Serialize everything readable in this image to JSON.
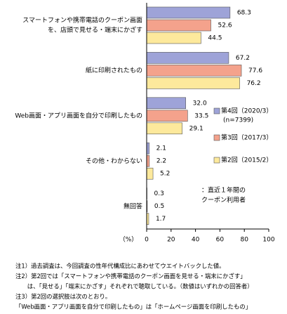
{
  "chart_data": {
    "type": "hbar",
    "categories": [
      [
        "スマートフォンや携帯電話のクーポン画面",
        "を、店頭で見せる・端末にかざす"
      ],
      [
        "紙に印刷されたもの"
      ],
      [
        "Web画面・アプリ画面を自分で印刷したもの"
      ],
      [
        "その他・わからない"
      ],
      [
        "無回答"
      ]
    ],
    "series": [
      {
        "name": "第4回（2020/3）",
        "note": "(n=7399)",
        "color": "#9ea3d8",
        "values": [
          68.3,
          67.2,
          32.0,
          2.1,
          0.3
        ],
        "value_labels": [
          "68.3",
          "67.2",
          "32.0",
          "2.1",
          "0.3"
        ]
      },
      {
        "name": "第3回（2017/3）",
        "color": "#f4a28c",
        "values": [
          52.6,
          77.6,
          33.5,
          2.2,
          0.5
        ],
        "value_labels": [
          "52.6",
          "77.6",
          "33.5",
          "2.2",
          "0.5"
        ]
      },
      {
        "name": "第2回（2015/2）",
        "color": "#fde99c",
        "values": [
          44.5,
          76.2,
          29.1,
          5.2,
          1.7
        ],
        "value_labels": [
          "44.5",
          "76.2",
          "29.1",
          "5.2",
          "1.7"
        ]
      }
    ],
    "xlim": [
      0,
      100
    ],
    "xticks": [
      0,
      20,
      40,
      60,
      80,
      100
    ],
    "xlabel": "（%）",
    "annotation": [
      "：直近１年間の",
      "クーポン利用者"
    ],
    "notes": [
      "注1）過去調査は、今回調査の性年代構成比にあわせてウエイトバックした値。",
      "注2）第2回では「スマートフォンや携帯電話のクーポン画面を見せる・端末にかざす」",
      "　　は、「見せる」「端末にかざす」それぞれで聴取している。（数値はいずれかの回答者）",
      "注3）第2回の選択肢は次のとおり。",
      "「Web画面・アプリ画面を自分で印刷したもの」は「ホームページ画面を印刷したもの」"
    ]
  }
}
